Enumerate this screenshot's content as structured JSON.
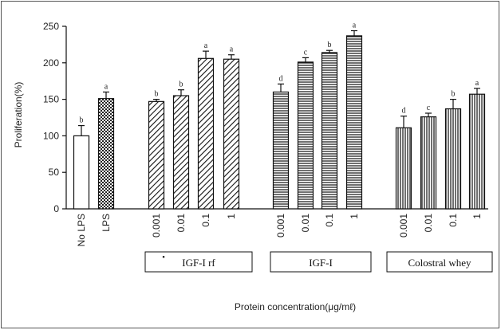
{
  "chart_data": {
    "type": "bar",
    "ylabel": "Proliferation(%)",
    "xlabel": "Protein concentration(μg/mℓ)",
    "ylim": [
      0,
      250
    ],
    "yticks": [
      0,
      50,
      100,
      150,
      200,
      250
    ],
    "grid": false,
    "groups": [
      {
        "label": "",
        "pattern": "none",
        "bars": [
          {
            "category": "No LPS",
            "value": 100,
            "error": 14,
            "letter": "b"
          }
        ]
      },
      {
        "label": "",
        "pattern": "checker",
        "bars": [
          {
            "category": "LPS",
            "value": 151,
            "error": 9,
            "letter": "a"
          }
        ]
      },
      {
        "label": "IGF-I rf",
        "label_dot": "•",
        "pattern": "diagonal",
        "bars": [
          {
            "category": "0.001",
            "value": 147,
            "error": 3,
            "letter": "b"
          },
          {
            "category": "0.01",
            "value": 155,
            "error": 8,
            "letter": "b"
          },
          {
            "category": "0.1",
            "value": 206,
            "error": 10,
            "letter": "a"
          },
          {
            "category": "1",
            "value": 205,
            "error": 6,
            "letter": "a"
          }
        ]
      },
      {
        "label": "IGF-I",
        "pattern": "horizontal",
        "bars": [
          {
            "category": "0.001",
            "value": 160,
            "error": 11,
            "letter": "d"
          },
          {
            "category": "0.01",
            "value": 201,
            "error": 6,
            "letter": "c"
          },
          {
            "category": "0.1",
            "value": 214,
            "error": 3,
            "letter": "b"
          },
          {
            "category": "1",
            "value": 237,
            "error": 7,
            "letter": "a"
          }
        ]
      },
      {
        "label": "Colostral whey",
        "pattern": "vertical",
        "bars": [
          {
            "category": "0.001",
            "value": 111,
            "error": 16,
            "letter": "d"
          },
          {
            "category": "0.01",
            "value": 126,
            "error": 5,
            "letter": "c"
          },
          {
            "category": "0.1",
            "value": 137,
            "error": 13,
            "letter": "b"
          },
          {
            "category": "1",
            "value": 157,
            "error": 8,
            "letter": "a"
          }
        ]
      }
    ]
  }
}
